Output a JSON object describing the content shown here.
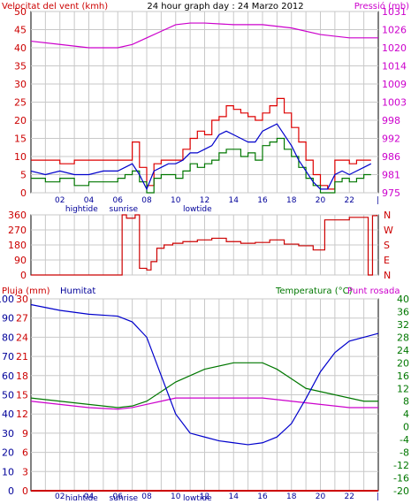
{
  "colors": {
    "frame": "#000000",
    "grid": "#c8c8c8",
    "wind_avg": "#0000cc",
    "wind_gust": "#dd0000",
    "wind_calm": "#007700",
    "pressure": "#cc00cc",
    "direction": "#cc0000",
    "rain": "#cc0000",
    "humidity": "#0000cc",
    "temperature": "#007700",
    "dewpoint": "#cc00cc",
    "text_red": "#cc0000",
    "text_blue": "#000099",
    "text_magenta": "#cc00cc",
    "text_green": "#007700"
  },
  "chart_data": [
    {
      "type": "line",
      "panel": "wind-pressure",
      "title": "24 hour graph day : 24 Marzo 2012",
      "ylabel_left": "Velocitat del vent (kmh)",
      "ylabel_right": "Pressió (mb)",
      "ylim_left": [
        0,
        50
      ],
      "ylim_right": [
        975,
        1030
      ],
      "yticks_left": [
        "0",
        "5",
        "10",
        "15",
        "20",
        "25",
        "30",
        "35",
        "40",
        "45",
        "50"
      ],
      "yticks_right": [
        "975",
        "981",
        "986",
        "992",
        "998",
        "1003",
        "1009",
        "1014",
        "1020",
        "1026",
        "1031"
      ],
      "xlim": [
        0,
        24
      ],
      "xticks": [
        "02",
        "04",
        "06",
        "08",
        "10",
        "12",
        "14",
        "16",
        "18",
        "20",
        "22"
      ],
      "annotations": [
        "hightide",
        "sunrise",
        "lowtide"
      ],
      "series": [
        {
          "key": "gust",
          "x": [
            0,
            1,
            2,
            3,
            4,
            5,
            6,
            6.5,
            7,
            7.5,
            8,
            8.5,
            9,
            9.5,
            10,
            10.5,
            11,
            11.5,
            12,
            12.5,
            13,
            13.5,
            14,
            14.5,
            15,
            15.5,
            16,
            16.5,
            17,
            17.5,
            18,
            18.5,
            19,
            19.5,
            20,
            20.5,
            21,
            21.5,
            22,
            22.5,
            23,
            23.5
          ],
          "y": [
            9,
            9,
            8,
            9,
            9,
            9,
            9,
            9,
            14,
            7,
            2,
            8,
            9,
            9,
            9,
            12,
            15,
            17,
            16,
            20,
            21,
            24,
            23,
            22,
            21,
            20,
            22,
            24,
            26,
            22,
            18,
            14,
            9,
            5,
            2,
            1,
            9,
            9,
            8,
            9,
            9,
            9
          ]
        },
        {
          "key": "avg",
          "x": [
            0,
            1,
            2,
            3,
            4,
            5,
            6,
            6.5,
            7,
            7.5,
            8,
            8.5,
            9,
            9.5,
            10,
            10.5,
            11,
            11.5,
            12,
            12.5,
            13,
            13.5,
            14,
            14.5,
            15,
            15.5,
            16,
            16.5,
            17,
            17.5,
            18,
            18.5,
            19,
            19.5,
            20,
            20.5,
            21,
            21.5,
            22,
            22.5,
            23,
            23.5
          ],
          "y": [
            6,
            5,
            6,
            5,
            5,
            6,
            6,
            7,
            8,
            5,
            1,
            6,
            7,
            8,
            8,
            9,
            11,
            11,
            12,
            13,
            16,
            17,
            16,
            15,
            14,
            14,
            17,
            18,
            19,
            16,
            13,
            9,
            6,
            3,
            1,
            1,
            5,
            6,
            5,
            6,
            7,
            8
          ]
        },
        {
          "key": "calm",
          "x": [
            0,
            1,
            2,
            3,
            4,
            5,
            6,
            6.5,
            7,
            7.5,
            8,
            8.5,
            9,
            9.5,
            10,
            10.5,
            11,
            11.5,
            12,
            12.5,
            13,
            13.5,
            14,
            14.5,
            15,
            15.5,
            16,
            16.5,
            17,
            17.5,
            18,
            18.5,
            19,
            19.5,
            20,
            20.5,
            21,
            21.5,
            22,
            22.5,
            23,
            23.5
          ],
          "y": [
            4,
            3,
            4,
            2,
            3,
            3,
            4,
            5,
            6,
            3,
            0,
            4,
            5,
            5,
            4,
            6,
            8,
            7,
            8,
            9,
            11,
            12,
            12,
            10,
            11,
            9,
            13,
            14,
            15,
            12,
            10,
            7,
            4,
            2,
            0,
            0,
            3,
            4,
            3,
            4,
            5,
            5
          ]
        },
        {
          "key": "pressure",
          "x": [
            0,
            2,
            4,
            6,
            7,
            8,
            9,
            10,
            11,
            12,
            14,
            16,
            18,
            20,
            22,
            24
          ],
          "y": [
            1021,
            1020,
            1019,
            1019,
            1020,
            1022,
            1024,
            1026,
            1026.5,
            1026.5,
            1026,
            1026,
            1025,
            1023,
            1022,
            1022
          ]
        }
      ]
    },
    {
      "type": "line",
      "panel": "direction",
      "ylim": [
        0,
        360
      ],
      "yticks": [
        "0",
        "90",
        "180",
        "270",
        "360"
      ],
      "yticks_right": [
        "N",
        "E",
        "S",
        "W",
        "N"
      ],
      "series": [
        {
          "key": "direction",
          "x": [
            0,
            3,
            6.2,
            6.3,
            6.6,
            7.2,
            7.5,
            8,
            8.3,
            8.7,
            9.2,
            9.8,
            10.5,
            11.5,
            12.5,
            13.5,
            14.5,
            15.5,
            16.5,
            17.5,
            18.5,
            19.5,
            20.2,
            20.3,
            22,
            23,
            23.3,
            23.6,
            23.9
          ],
          "y": [
            0,
            0,
            0,
            360,
            340,
            360,
            40,
            30,
            80,
            160,
            180,
            190,
            200,
            210,
            220,
            200,
            190,
            195,
            210,
            185,
            175,
            150,
            150,
            330,
            345,
            345,
            0,
            355,
            360
          ]
        }
      ]
    },
    {
      "type": "line",
      "panel": "rain-humidity-temperature",
      "ylabel_left": "Pluja (mm)",
      "ylabel_humidity": "Humitat",
      "ylabel_right": "Temperatura (°C)",
      "ylabel_right2": "Punt rosada",
      "ylim_humidity": [
        0,
        100
      ],
      "ylim_temperature": [
        -20,
        40
      ],
      "yticks_humidity": [
        "0",
        "10",
        "20",
        "30",
        "40",
        "50",
        "60",
        "70",
        "80",
        "90",
        "100"
      ],
      "yticks_rain": [
        "0",
        "3",
        "6",
        "9",
        "12",
        "15",
        "18",
        "21",
        "24",
        "27",
        "30"
      ],
      "yticks_temperature": [
        "-20",
        "-16",
        "-12",
        "-8",
        "-4",
        "0",
        "4",
        "8",
        "12",
        "16",
        "20",
        "24",
        "28",
        "32",
        "36",
        "40"
      ],
      "series": [
        {
          "key": "humidity",
          "x": [
            0,
            2,
            4,
            6,
            7,
            8,
            8.5,
            9,
            9.5,
            10,
            11,
            12,
            13,
            14,
            15,
            16,
            17,
            18,
            19,
            20,
            21,
            22,
            23,
            24
          ],
          "y": [
            97,
            94,
            92,
            91,
            88,
            80,
            70,
            60,
            50,
            40,
            30,
            28,
            26,
            25,
            24,
            25,
            28,
            35,
            48,
            62,
            72,
            78,
            80,
            82
          ]
        },
        {
          "key": "temperature",
          "x": [
            0,
            2,
            4,
            6,
            7,
            8,
            9,
            10,
            11,
            12,
            14,
            16,
            17,
            18,
            19,
            20,
            21,
            22,
            23,
            24
          ],
          "y": [
            9,
            8,
            7,
            6,
            6.5,
            8,
            11,
            14,
            16,
            18,
            20,
            20,
            18,
            15,
            12,
            11,
            10,
            9,
            8,
            8
          ]
        },
        {
          "key": "dewpoint",
          "x": [
            0,
            2,
            4,
            6,
            7,
            8,
            9,
            10,
            11,
            12,
            14,
            16,
            18,
            20,
            22,
            24
          ],
          "y": [
            8,
            7,
            6,
            5.5,
            6,
            7,
            8,
            9,
            9,
            9,
            9,
            9,
            8,
            7,
            6,
            6
          ]
        },
        {
          "key": "rain",
          "x": [
            0,
            24
          ],
          "y": [
            0,
            0
          ]
        }
      ]
    }
  ]
}
